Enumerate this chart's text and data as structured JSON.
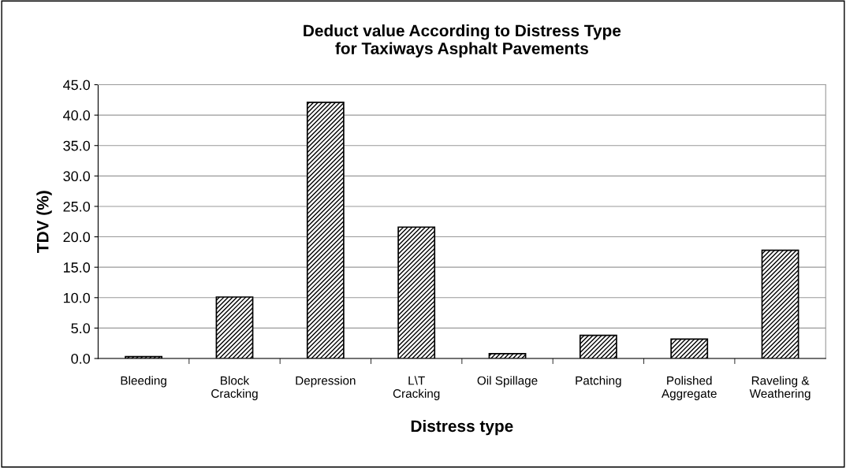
{
  "chart_data": {
    "type": "bar",
    "title": "Deduct value According to Distress Type\nfor Taxiways Asphalt Pavements",
    "xlabel": "Distress type",
    "ylabel": "TDV (%)",
    "categories": [
      "Bleeding",
      "Block\nCracking",
      "Depression",
      "L\\T\nCracking",
      "Oil Spillage",
      "Patching",
      "Polished\nAggregate",
      "Raveling &\nWeathering"
    ],
    "values": [
      0.3,
      10.1,
      42.1,
      21.6,
      0.8,
      3.8,
      3.2,
      17.8
    ],
    "color": "#000000",
    "ylim": [
      0,
      45
    ],
    "yticks": [
      {
        "value": 0,
        "label": "0.0"
      },
      {
        "value": 5,
        "label": "5.0"
      },
      {
        "value": 10,
        "label": "10.0"
      },
      {
        "value": 15,
        "label": "15.0"
      },
      {
        "value": 20,
        "label": "20.0"
      },
      {
        "value": 25,
        "label": "25.0"
      },
      {
        "value": 30,
        "label": "30.0"
      },
      {
        "value": 35,
        "label": "35.0"
      },
      {
        "value": 40,
        "label": "40.0"
      },
      {
        "value": 45,
        "label": "45.0"
      }
    ],
    "grid": "y",
    "legend": false
  }
}
